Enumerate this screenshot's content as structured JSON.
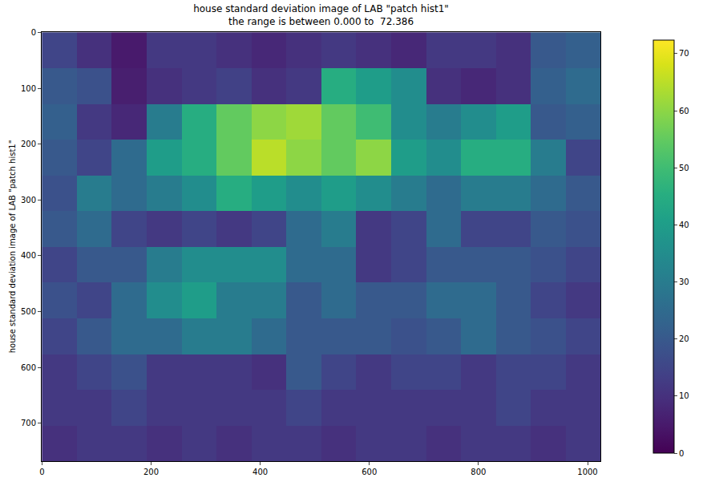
{
  "chart_data": {
    "type": "heatmap",
    "title": "house standard deviation image of LAB \"patch hist1\"",
    "subtitle": "the range is between 0.000 to  72.386",
    "y_label": "house standard deviation image of LAB \"patch hist1\"",
    "color": "Viridis",
    "x": [
      32,
      96,
      160,
      224,
      288,
      352,
      416,
      480,
      544,
      608,
      672,
      736,
      800,
      864,
      928,
      992
    ],
    "y": [
      32,
      96,
      160,
      224,
      288,
      352,
      416,
      480,
      544,
      608,
      672,
      736
    ],
    "z": [
      [
        15,
        10,
        5,
        12,
        12,
        10,
        8,
        10,
        12,
        10,
        8,
        12,
        12,
        10,
        20,
        22
      ],
      [
        20,
        18,
        6,
        10,
        12,
        14,
        10,
        12,
        45,
        40,
        35,
        10,
        8,
        10,
        22,
        25
      ],
      [
        22,
        12,
        8,
        30,
        45,
        55,
        60,
        62,
        55,
        50,
        35,
        30,
        35,
        40,
        20,
        22
      ],
      [
        20,
        15,
        25,
        40,
        45,
        55,
        65,
        60,
        55,
        60,
        40,
        35,
        45,
        45,
        30,
        15
      ],
      [
        18,
        30,
        25,
        30,
        35,
        45,
        40,
        35,
        40,
        35,
        30,
        25,
        30,
        30,
        25,
        20
      ],
      [
        20,
        25,
        15,
        12,
        15,
        12,
        15,
        25,
        30,
        12,
        15,
        25,
        15,
        15,
        20,
        18
      ],
      [
        15,
        20,
        20,
        30,
        35,
        35,
        35,
        25,
        25,
        12,
        15,
        20,
        20,
        20,
        18,
        15
      ],
      [
        18,
        15,
        25,
        35,
        40,
        30,
        30,
        20,
        25,
        20,
        20,
        25,
        25,
        20,
        15,
        12
      ],
      [
        15,
        20,
        25,
        25,
        30,
        30,
        25,
        20,
        20,
        20,
        18,
        20,
        25,
        20,
        18,
        15
      ],
      [
        12,
        15,
        18,
        12,
        12,
        12,
        10,
        20,
        15,
        12,
        15,
        15,
        12,
        15,
        15,
        12
      ],
      [
        12,
        12,
        15,
        12,
        12,
        12,
        12,
        15,
        12,
        12,
        12,
        12,
        12,
        15,
        12,
        12
      ],
      [
        10,
        12,
        12,
        10,
        12,
        10,
        12,
        12,
        10,
        12,
        12,
        10,
        12,
        12,
        10,
        12
      ]
    ],
    "xlim": [
      -0.5,
      1023.5
    ],
    "ylim": [
      767.5,
      -0.5
    ],
    "xticks": [
      0,
      200,
      400,
      600,
      800,
      1000
    ],
    "yticks": [
      0,
      100,
      200,
      300,
      400,
      500,
      600,
      700
    ],
    "zlim": [
      0,
      72.386
    ],
    "colorbar_ticks": [
      0,
      10,
      20,
      30,
      40,
      50,
      60,
      70
    ]
  }
}
